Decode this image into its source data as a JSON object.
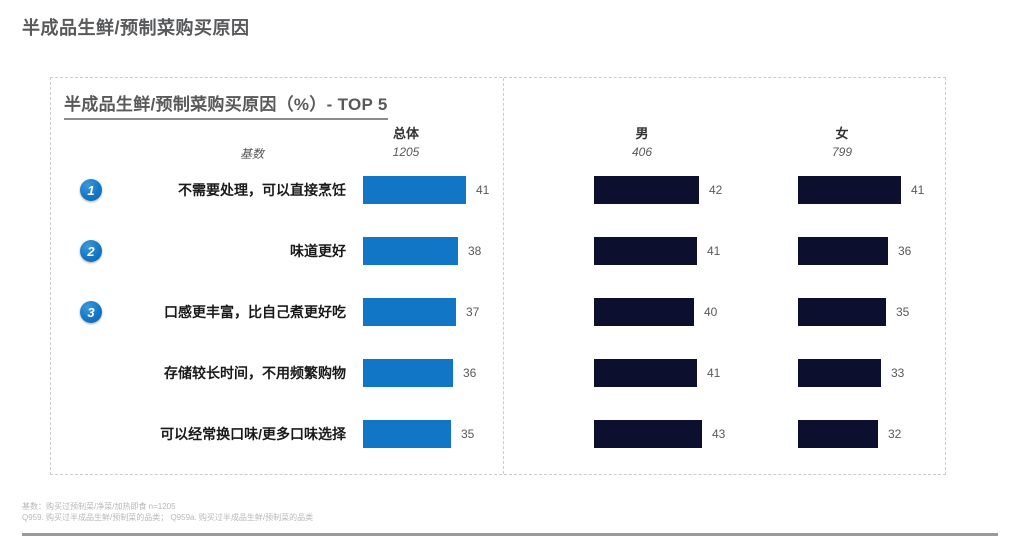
{
  "page": {
    "title": "半成品生鲜/预制菜购买原因",
    "footnote_line1": "基数：购买过预制菜/净菜/加热即食 n=1205",
    "footnote_line2": "Q959. 购买过半成品生鲜/预制菜的品类； Q959a. 购买过半成品生鲜/预制菜的品类"
  },
  "chart_data": {
    "type": "bar",
    "orientation": "horizontal",
    "title": "半成品生鲜/预制菜购买原因（%）- TOP 5",
    "base_row_label": "基数",
    "columns": [
      {
        "label": "总体",
        "base": "1205"
      },
      {
        "label": "男",
        "base": "406"
      },
      {
        "label": "女",
        "base": "799"
      }
    ],
    "ranks": [
      "1",
      "2",
      "3"
    ],
    "categories": [
      "不需要处理，可以直接烹饪",
      "味道更好",
      "口感更丰富，比自己煮更好吃",
      "存储较长时间，不用频繁购物",
      "可以经常换口味/更多口味选择"
    ],
    "series": [
      {
        "name": "总体",
        "values": [
          41,
          38,
          37,
          36,
          35
        ],
        "color": "#1176c5"
      },
      {
        "name": "男",
        "values": [
          42,
          41,
          40,
          41,
          43
        ],
        "color": "#0c102e"
      },
      {
        "name": "女",
        "values": [
          41,
          36,
          35,
          33,
          32
        ],
        "color": "#0c102e"
      }
    ],
    "value_unit": "%",
    "xlim": [
      0,
      50
    ],
    "grid": false,
    "legend": false
  }
}
